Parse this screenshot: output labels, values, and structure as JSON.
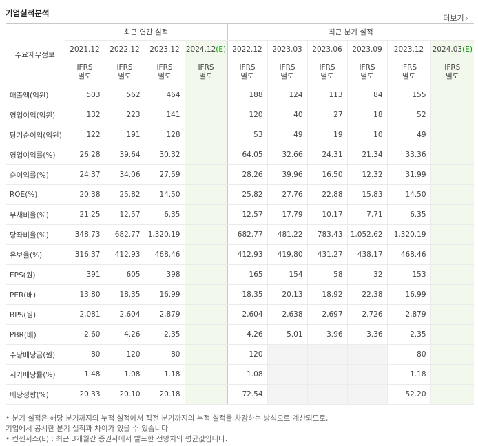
{
  "section_title": "기업실적분석",
  "more_link": "더보기",
  "metric_header": "주요재무정보",
  "groups": [
    {
      "label": "최근 연간 실적"
    },
    {
      "label": "최근 분기 실적"
    }
  ],
  "periods": [
    {
      "label": "2021.12",
      "est": "",
      "ifrs1": "IFRS",
      "ifrs2": "별도"
    },
    {
      "label": "2022.12",
      "est": "",
      "ifrs1": "IFRS",
      "ifrs2": "별도"
    },
    {
      "label": "2023.12",
      "est": "",
      "ifrs1": "IFRS",
      "ifrs2": "별도"
    },
    {
      "label": "2024.12",
      "est": "(E)",
      "ifrs1": "IFRS",
      "ifrs2": "별도"
    },
    {
      "label": "2022.12",
      "est": "",
      "ifrs1": "IFRS",
      "ifrs2": "별도"
    },
    {
      "label": "2023.03",
      "est": "",
      "ifrs1": "IFRS",
      "ifrs2": "별도"
    },
    {
      "label": "2023.06",
      "est": "",
      "ifrs1": "IFRS",
      "ifrs2": "별도"
    },
    {
      "label": "2023.09",
      "est": "",
      "ifrs1": "IFRS",
      "ifrs2": "별도"
    },
    {
      "label": "2023.12",
      "est": "",
      "ifrs1": "IFRS",
      "ifrs2": "별도"
    },
    {
      "label": "2024.03",
      "est": "(E)",
      "ifrs1": "IFRS",
      "ifrs2": "별도"
    }
  ],
  "rows": [
    {
      "label": "매출액(억원)",
      "values": [
        "503",
        "562",
        "464",
        "",
        "188",
        "124",
        "113",
        "84",
        "155",
        ""
      ]
    },
    {
      "label": "영업이익(억원)",
      "values": [
        "132",
        "223",
        "141",
        "",
        "120",
        "40",
        "27",
        "18",
        "52",
        ""
      ]
    },
    {
      "label": "당기순이익(억원)",
      "values": [
        "122",
        "191",
        "128",
        "",
        "53",
        "49",
        "19",
        "10",
        "49",
        ""
      ]
    },
    {
      "label": "영업이익률(%)",
      "values": [
        "26.28",
        "39.64",
        "30.32",
        "",
        "64.05",
        "32.66",
        "24.31",
        "21.34",
        "33.36",
        ""
      ]
    },
    {
      "label": "순이익률(%)",
      "values": [
        "24.37",
        "34.06",
        "27.59",
        "",
        "28.26",
        "39.96",
        "16.50",
        "12.32",
        "31.99",
        ""
      ]
    },
    {
      "label": "ROE(%)",
      "values": [
        "20.38",
        "25.82",
        "14.50",
        "",
        "25.82",
        "27.76",
        "22.88",
        "15.83",
        "14.50",
        ""
      ]
    },
    {
      "label": "부채비율(%)",
      "values": [
        "21.25",
        "12.57",
        "6.35",
        "",
        "12.57",
        "17.79",
        "10.17",
        "7.71",
        "6.35",
        ""
      ]
    },
    {
      "label": "당좌비율(%)",
      "values": [
        "348.73",
        "682.77",
        "1,320.19",
        "",
        "682.77",
        "481.22",
        "783.43",
        "1,052.62",
        "1,320.19",
        ""
      ]
    },
    {
      "label": "유보율(%)",
      "values": [
        "316.37",
        "412.93",
        "468.46",
        "",
        "412.93",
        "419.80",
        "431.27",
        "438.17",
        "468.46",
        ""
      ]
    },
    {
      "label": "EPS(원)",
      "values": [
        "391",
        "605",
        "398",
        "",
        "165",
        "154",
        "58",
        "32",
        "153",
        ""
      ]
    },
    {
      "label": "PER(배)",
      "values": [
        "13.80",
        "18.35",
        "16.99",
        "",
        "18.35",
        "20.13",
        "18.92",
        "22.38",
        "16.99",
        ""
      ]
    },
    {
      "label": "BPS(원)",
      "values": [
        "2,081",
        "2,604",
        "2,879",
        "",
        "2,604",
        "2,638",
        "2,697",
        "2,726",
        "2,879",
        ""
      ]
    },
    {
      "label": "PBR(배)",
      "values": [
        "2.60",
        "4.26",
        "2.35",
        "",
        "4.26",
        "5.01",
        "3.96",
        "3.36",
        "2.35",
        ""
      ]
    },
    {
      "label": "주당배당금(원)",
      "values": [
        "80",
        "120",
        "80",
        "",
        "120",
        "",
        "",
        "",
        "80",
        ""
      ]
    },
    {
      "label": "시가배당률(%)",
      "values": [
        "1.48",
        "1.08",
        "1.18",
        "",
        "1.08",
        "",
        "",
        "",
        "1.18",
        ""
      ]
    },
    {
      "label": "배당성향(%)",
      "values": [
        "20.33",
        "20.10",
        "20.18",
        "",
        "72.54",
        "",
        "",
        "",
        "52.20",
        ""
      ]
    }
  ],
  "notes": [
    "• 분기 실적은 해당 분기까지의 누적 실적에서 직전 분기까지의 누적 실적을 차감하는 방식으로 계산되므로,",
    "   기업에서 공시한 분기 실적과 차이가 있을 수 있습니다.",
    "• 컨센서스(E) : 최근 3개월간 증권사에서 발표한 전망치의 평균값입니다."
  ],
  "colors": {
    "ifrs": "#e2522b",
    "estimate_mark": "#00a000",
    "estimate_bg": "#f2f8ec",
    "empty_bg": "#f4f4f4"
  }
}
